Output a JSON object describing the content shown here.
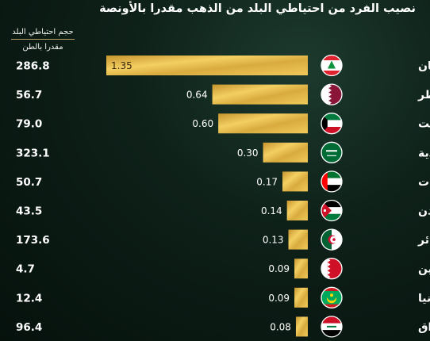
{
  "title": "نصيب الفرد من احتياطي البلد من الذهب مقدرا بالأونصة",
  "reserve_header": {
    "line1": "حجم احتياطي البلد",
    "line2": "مقدرا بالطن"
  },
  "colors": {
    "gold_dark": "#b88a28",
    "gold_light": "#f3cf62",
    "accent_line": "#b7a067"
  },
  "chart_data": {
    "type": "bar",
    "title": "نصيب الفرد من احتياطي البلد من الذهب مقدرا بالأونصة",
    "orientation": "horizontal",
    "categories": [
      "لبنان",
      "قطر",
      "الكويت",
      "السعودية",
      "الإمارات",
      "الأردن",
      "الجزائر",
      "البحرين",
      "موريتانيا",
      "العراق"
    ],
    "flags": [
      "lebanon-flag-icon",
      "qatar-flag-icon",
      "kuwait-flag-icon",
      "saudi-arabia-flag-icon",
      "uae-flag-icon",
      "jordan-flag-icon",
      "algeria-flag-icon",
      "bahrain-flag-icon",
      "mauritania-flag-icon",
      "iraq-flag-icon"
    ],
    "series": [
      {
        "values": [
          1.35,
          0.64,
          0.6,
          0.3,
          0.17,
          0.14,
          0.13,
          0.09,
          0.09,
          0.08
        ],
        "labels": [
          "1.35",
          "0.64",
          "0.60",
          "0.30",
          "0.17",
          "0.14",
          "0.13",
          "0.09",
          "0.09",
          "0.08"
        ]
      }
    ],
    "reserves_tonnes": [
      "286.8",
      "56.7",
      "79.0",
      "323.1",
      "50.7",
      "43.5",
      "173.6",
      "4.7",
      "12.4",
      "96.4"
    ],
    "xlim": [
      0,
      1.35
    ],
    "grid": false,
    "legend": "none"
  }
}
